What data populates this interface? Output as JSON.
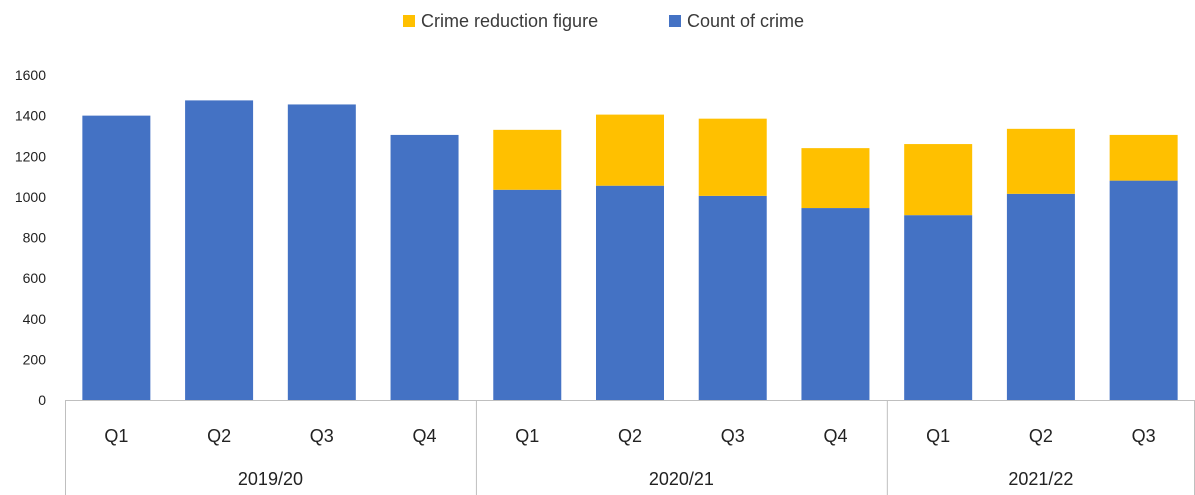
{
  "chart_data": {
    "type": "bar",
    "stacked": true,
    "title": "",
    "xlabel": "",
    "ylabel": "",
    "ylim": [
      0,
      1600
    ],
    "yticks": [
      0,
      200,
      400,
      600,
      800,
      1000,
      1200,
      1400,
      1600
    ],
    "grid": false,
    "legend_position": "top-center",
    "categories": [
      "Q1",
      "Q2",
      "Q3",
      "Q4",
      "Q1",
      "Q2",
      "Q3",
      "Q4",
      "Q1",
      "Q2",
      "Q3"
    ],
    "groups": [
      {
        "label": "2019/20",
        "count": 4
      },
      {
        "label": "2020/21",
        "count": 4
      },
      {
        "label": "2021/22",
        "count": 3
      }
    ],
    "series": [
      {
        "name": "Count of crime",
        "color": "#4472C4",
        "values": [
          1400,
          1475,
          1455,
          1305,
          1035,
          1055,
          1005,
          945,
          910,
          1015,
          1080
        ]
      },
      {
        "name": "Crime reduction figure",
        "color": "#FFC000",
        "values": [
          0,
          0,
          0,
          0,
          295,
          350,
          380,
          295,
          350,
          320,
          225
        ]
      }
    ],
    "legend_order": [
      "Crime reduction figure",
      "Count of crime"
    ]
  }
}
